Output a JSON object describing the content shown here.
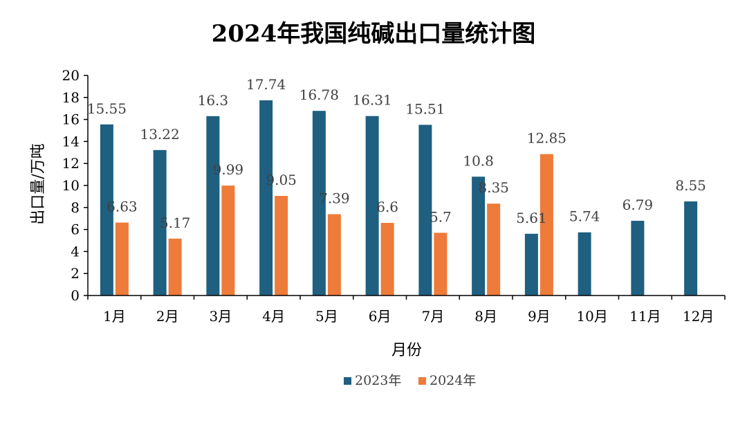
{
  "chart_data": {
    "type": "bar",
    "title": "2024年我国纯碱出口量统计图",
    "xlabel": "月份",
    "ylabel": "出口量/万吨",
    "ylim": [
      0,
      20
    ],
    "yticks": [
      0,
      2,
      4,
      6,
      8,
      10,
      12,
      14,
      16,
      18,
      20
    ],
    "grid": false,
    "legend_position": "bottom",
    "categories": [
      "1月",
      "2月",
      "3月",
      "4月",
      "5月",
      "6月",
      "7月",
      "8月",
      "9月",
      "10月",
      "11月",
      "12月"
    ],
    "series": [
      {
        "name": "2023年",
        "color": "#1F5F80",
        "values": [
          15.55,
          13.22,
          16.3,
          17.74,
          16.78,
          16.31,
          15.51,
          10.8,
          5.61,
          5.74,
          6.79,
          8.55
        ],
        "labels": [
          "15.55",
          "13.22",
          "16.3",
          "17.74",
          "16.78",
          "16.31",
          "15.51",
          "10.8",
          "5.61",
          "5.74",
          "6.79",
          "8.55"
        ]
      },
      {
        "name": "2024年",
        "color": "#EE7B39",
        "values": [
          6.63,
          5.17,
          9.99,
          9.05,
          7.39,
          6.6,
          5.7,
          8.35,
          12.85,
          null,
          null,
          null
        ],
        "labels": [
          "6.63",
          "5.17",
          "9.99",
          "9.05",
          "7.39",
          "6.6",
          "5.7",
          "8.35",
          "12.85",
          null,
          null,
          null
        ]
      }
    ]
  }
}
